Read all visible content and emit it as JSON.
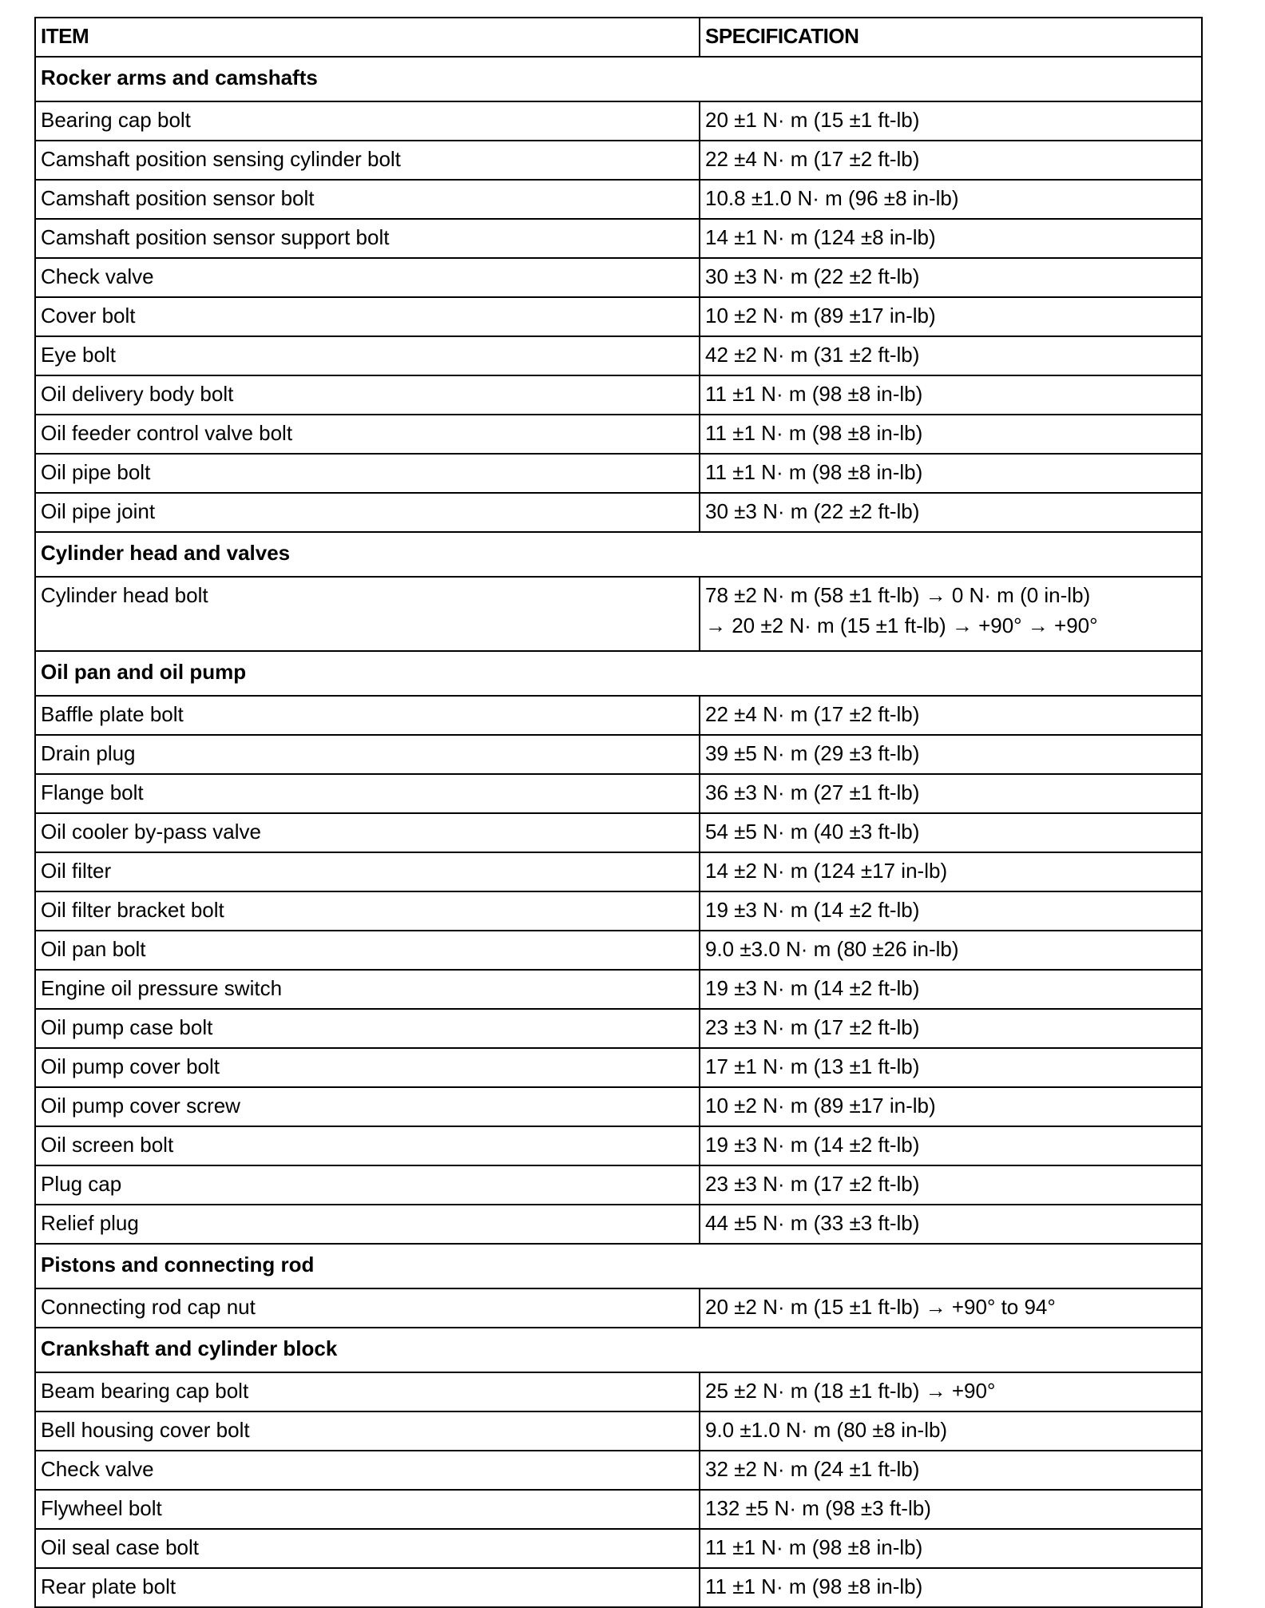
{
  "header": {
    "item": "ITEM",
    "specification": "SPECIFICATION"
  },
  "sections": [
    {
      "title": "Rocker arms and camshafts",
      "rows": [
        {
          "item": "Bearing cap bolt",
          "spec": [
            "20 ±1 N· m (15 ±1 ft-lb)"
          ]
        },
        {
          "item": "Camshaft position sensing cylinder bolt",
          "spec": [
            "22 ±4 N· m (17 ±2 ft-lb)"
          ]
        },
        {
          "item": "Camshaft position sensor bolt",
          "spec": [
            "10.8 ±1.0 N· m (96 ±8 in-lb)"
          ]
        },
        {
          "item": "Camshaft position sensor support bolt",
          "spec": [
            "14 ±1 N· m (124 ±8 in-lb)"
          ]
        },
        {
          "item": "Check valve",
          "spec": [
            "30 ±3 N· m (22 ±2 ft-lb)"
          ]
        },
        {
          "item": "Cover bolt",
          "spec": [
            "10 ±2 N· m (89 ±17 in-lb)"
          ]
        },
        {
          "item": "Eye bolt",
          "spec": [
            "42 ±2 N· m (31 ±2 ft-lb)"
          ]
        },
        {
          "item": "Oil delivery body bolt",
          "spec": [
            "11 ±1 N· m (98 ±8 in-lb)"
          ]
        },
        {
          "item": "Oil feeder control valve bolt",
          "spec": [
            "11 ±1 N· m (98 ±8 in-lb)"
          ]
        },
        {
          "item": "Oil pipe bolt",
          "spec": [
            "11 ±1 N· m (98 ±8 in-lb)"
          ]
        },
        {
          "item": "Oil pipe joint",
          "spec": [
            "30 ±3 N· m (22 ±2 ft-lb)"
          ]
        }
      ]
    },
    {
      "title": "Cylinder head and valves",
      "rows": [
        {
          "item": "Cylinder head bolt",
          "spec": [
            "78 ±2 N· m (58 ±1 ft-lb) → 0 N· m (0 in-lb)",
            "→ 20 ±2 N· m (15 ±1 ft-lb) → +90° → +90°"
          ]
        }
      ]
    },
    {
      "title": "Oil pan and oil pump",
      "rows": [
        {
          "item": "Baffle plate bolt",
          "spec": [
            "22 ±4 N· m (17 ±2 ft-lb)"
          ]
        },
        {
          "item": "Drain plug",
          "spec": [
            "39 ±5 N· m (29 ±3 ft-lb)"
          ]
        },
        {
          "item": "Flange bolt",
          "spec": [
            "36 ±3 N· m (27 ±1 ft-lb)"
          ]
        },
        {
          "item": "Oil cooler by-pass valve",
          "spec": [
            "54 ±5 N· m (40 ±3 ft-lb)"
          ]
        },
        {
          "item": "Oil filter",
          "spec": [
            "14 ±2 N· m (124 ±17 in-lb)"
          ]
        },
        {
          "item": "Oil filter bracket bolt",
          "spec": [
            "19 ±3 N· m (14 ±2 ft-lb)"
          ]
        },
        {
          "item": "Oil pan bolt",
          "spec": [
            "9.0 ±3.0 N· m (80 ±26 in-lb)"
          ]
        },
        {
          "item": "Engine oil pressure switch",
          "spec": [
            "19 ±3 N· m (14 ±2 ft-lb)"
          ]
        },
        {
          "item": "Oil pump case bolt",
          "spec": [
            "23 ±3 N· m (17 ±2 ft-lb)"
          ]
        },
        {
          "item": "Oil pump cover bolt",
          "spec": [
            "17 ±1 N· m (13 ±1 ft-lb)"
          ]
        },
        {
          "item": "Oil pump cover screw",
          "spec": [
            "10 ±2 N· m (89 ±17 in-lb)"
          ]
        },
        {
          "item": "Oil screen bolt",
          "spec": [
            "19 ±3 N· m (14 ±2 ft-lb)"
          ]
        },
        {
          "item": "Plug cap",
          "spec": [
            "23 ±3 N· m (17 ±2 ft-lb)"
          ]
        },
        {
          "item": "Relief plug",
          "spec": [
            "44 ±5 N· m (33 ±3 ft-lb)"
          ]
        }
      ]
    },
    {
      "title": "Pistons and connecting rod",
      "rows": [
        {
          "item": "Connecting rod cap nut",
          "spec": [
            "20 ±2 N· m (15 ±1 ft-lb) → +90° to 94°"
          ]
        }
      ]
    },
    {
      "title": "Crankshaft and cylinder block",
      "rows": [
        {
          "item": "Beam bearing cap bolt",
          "spec": [
            "25 ±2 N· m (18 ±1 ft-lb) → +90°"
          ]
        },
        {
          "item": "Bell housing cover bolt",
          "spec": [
            "9.0 ±1.0 N· m (80 ±8 in-lb)"
          ]
        },
        {
          "item": "Check valve",
          "spec": [
            "32 ±2 N· m (24 ±1 ft-lb)"
          ]
        },
        {
          "item": "Flywheel bolt",
          "spec": [
            "132 ±5 N· m (98 ±3 ft-lb)"
          ]
        },
        {
          "item": "Oil seal case bolt",
          "spec": [
            "11 ±1 N· m (98 ±8 in-lb)"
          ]
        },
        {
          "item": "Rear plate bolt",
          "spec": [
            "11 ±1 N· m (98 ±8 in-lb)"
          ]
        }
      ]
    }
  ]
}
